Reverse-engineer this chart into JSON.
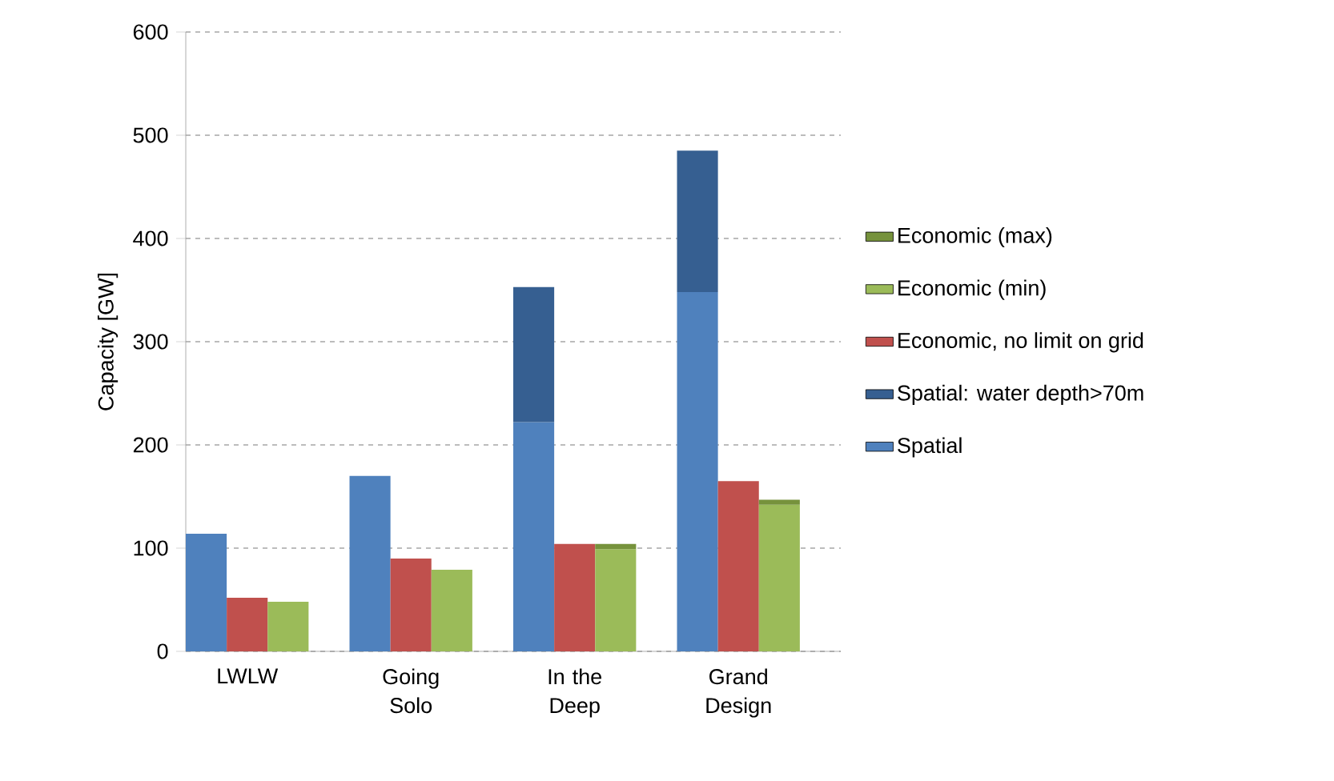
{
  "chart_data": {
    "type": "bar",
    "ylabel": "Capacity [GW]",
    "categories": [
      null,
      "LWLW",
      null,
      null,
      null,
      "Going Solo",
      null,
      null,
      null,
      "In the Deep",
      null,
      null,
      null,
      "Grand Design",
      null,
      null
    ],
    "stacked": true,
    "series": [
      {
        "name": "Spatial",
        "color": "#4f81bd",
        "values": [
          114,
          null,
          null,
          null,
          170,
          null,
          null,
          null,
          222,
          null,
          null,
          null,
          348,
          null,
          null,
          null
        ]
      },
      {
        "name": "Spatial: water depth>70m",
        "color": "#365f91",
        "values": [
          null,
          null,
          null,
          null,
          null,
          null,
          null,
          null,
          131,
          null,
          null,
          null,
          137,
          null,
          null,
          null
        ]
      },
      {
        "name": "Economic, no limit on grid",
        "color": "#c0504d",
        "values": [
          null,
          52,
          null,
          null,
          null,
          90,
          null,
          null,
          null,
          104,
          null,
          null,
          null,
          165,
          null,
          null
        ]
      },
      {
        "name": "Economic (min)",
        "color": "#9bbb59",
        "values": [
          null,
          null,
          48,
          null,
          null,
          null,
          79,
          null,
          null,
          null,
          99,
          null,
          null,
          null,
          142,
          null
        ]
      },
      {
        "name": "Economic (max)",
        "color": "#76923c",
        "values": [
          null,
          null,
          null,
          null,
          null,
          null,
          null,
          null,
          null,
          null,
          5,
          null,
          null,
          null,
          5,
          null
        ]
      }
    ],
    "ylim": [
      0,
      600
    ],
    "yticks": [
      0,
      100,
      200,
      300,
      400,
      500,
      600
    ],
    "grid": "y",
    "legend": "right"
  }
}
